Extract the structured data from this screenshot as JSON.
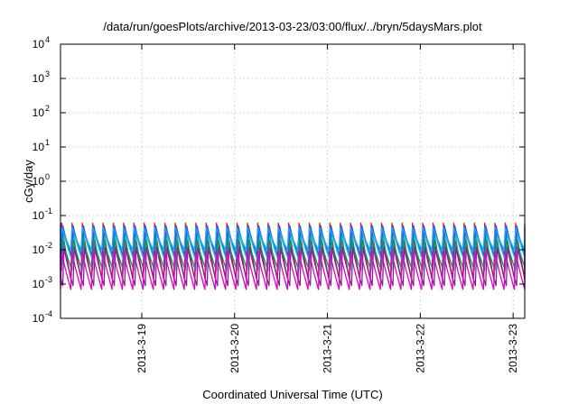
{
  "chart_data": {
    "type": "line",
    "title": "/data/run/goesPlots/archive/2013-03-23/03:00/flux/../bryn/5daysMars.plot",
    "xlabel": "Coordinated Universal Time (UTC)",
    "ylabel": "cGy/day",
    "y_scale": "log",
    "ylim": [
      0.0001,
      10000
    ],
    "y_ticks": [
      {
        "base": "10",
        "exp": "-4",
        "value": 0.0001
      },
      {
        "base": "10",
        "exp": "-3",
        "value": 0.001
      },
      {
        "base": "10",
        "exp": "-2",
        "value": 0.01
      },
      {
        "base": "10",
        "exp": "-1",
        "value": 0.1
      },
      {
        "base": "10",
        "exp": "0",
        "value": 1
      },
      {
        "base": "10",
        "exp": "1",
        "value": 10
      },
      {
        "base": "10",
        "exp": "2",
        "value": 100
      },
      {
        "base": "10",
        "exp": "3",
        "value": 1000
      },
      {
        "base": "10",
        "exp": "4",
        "value": 10000
      }
    ],
    "xlim": [
      "2013-03-18 03:00",
      "2013-03-23 03:00"
    ],
    "x_ticks": [
      "2013-3-19",
      "2013-3-20",
      "2013-3-21",
      "2013-3-22",
      "2013-3-23"
    ],
    "grid": true,
    "pattern": {
      "cycles_per_day": 9,
      "description": "Repeating sawtooth dose-rate profiles; each series rises sharply then decays each cycle"
    },
    "series": [
      {
        "color": "#e01c1c",
        "peak": 0.06,
        "trough": 0.0014
      },
      {
        "color": "#1e5bd6",
        "peak": 0.05,
        "trough": 0.006
      },
      {
        "color": "#00c8d2",
        "peak": 0.03,
        "trough": 0.004
      },
      {
        "color": "#23a0ff",
        "peak": 0.045,
        "trough": 0.01
      },
      {
        "color": "#009a7a",
        "peak": 0.02,
        "trough": 0.0025
      },
      {
        "color": "#7a2a8a",
        "peak": 0.012,
        "trough": 0.0009
      },
      {
        "color": "#e800c8",
        "peak": 0.009,
        "trough": 0.0007
      }
    ]
  }
}
